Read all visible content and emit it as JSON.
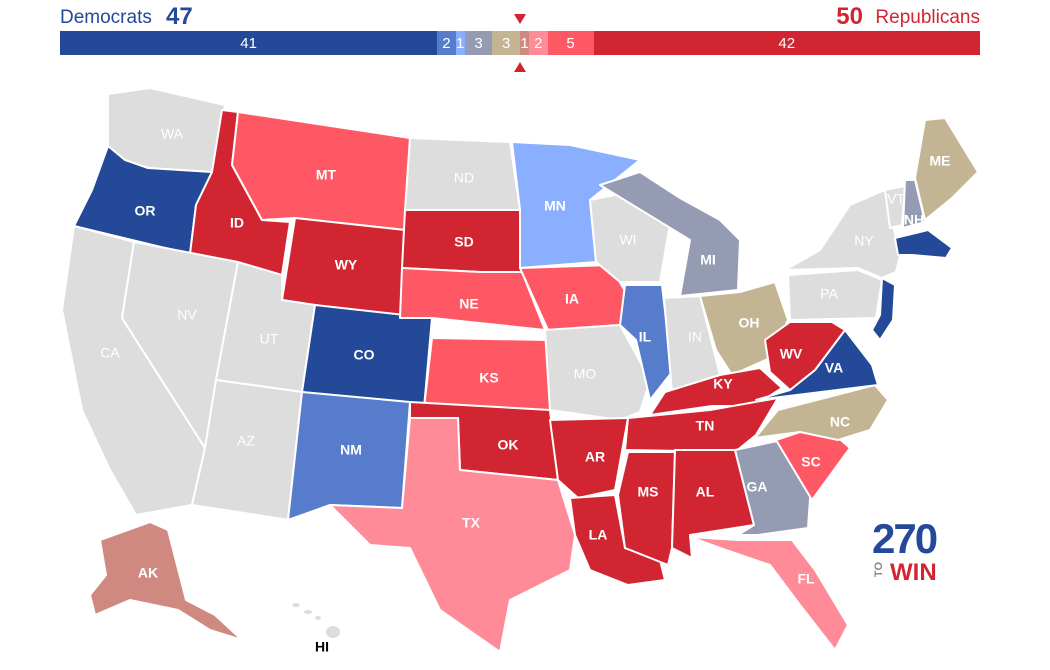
{
  "header": {
    "dem_label": "Democrats",
    "dem_total": "47",
    "rep_total": "50",
    "rep_label": "Republicans"
  },
  "seat_bar": [
    {
      "label": "41",
      "seats": 41,
      "color": "#244999"
    },
    {
      "label": "2",
      "seats": 2,
      "color": "#577CCC"
    },
    {
      "label": "1",
      "seats": 1,
      "color": "#8AAFFF"
    },
    {
      "label": "3",
      "seats": 3,
      "color": "#949BB3"
    },
    {
      "label": "3",
      "seats": 3,
      "color": "#C3B593"
    },
    {
      "label": "1",
      "seats": 1,
      "color": "#CF8980"
    },
    {
      "label": "2",
      "seats": 2,
      "color": "#FF8B98"
    },
    {
      "label": "5",
      "seats": 5,
      "color": "#FF5865"
    },
    {
      "label": "42",
      "seats": 42,
      "color": "#D22532"
    }
  ],
  "colors": {
    "safe_dem": "#244999",
    "likely_dem": "#577CCC",
    "lean_dem": "#8AAFFF",
    "tilt_dem": "#949BB3",
    "tossup": "#C3B593",
    "tilt_rep": "#CF8980",
    "lean_rep": "#FF8B98",
    "likely_rep": "#FF5865",
    "safe_rep": "#D22532",
    "no_race": "#DDDDDD"
  },
  "states": {
    "WA": "WA",
    "OR": "OR",
    "CA": "CA",
    "ID": "ID",
    "NV": "NV",
    "MT": "MT",
    "WY": "WY",
    "UT": "UT",
    "AZ": "AZ",
    "CO": "CO",
    "NM": "NM",
    "ND": "ND",
    "SD": "SD",
    "NE": "NE",
    "KS": "KS",
    "OK": "OK",
    "TX": "TX",
    "MN": "MN",
    "IA": "IA",
    "MO": "MO",
    "AR": "AR",
    "LA": "LA",
    "WI": "WI",
    "IL": "IL",
    "MI": "MI",
    "IN": "IN",
    "OH": "OH",
    "KY": "KY",
    "TN": "TN",
    "MS": "MS",
    "AL": "AL",
    "GA": "GA",
    "FL": "FL",
    "SC": "SC",
    "NC": "NC",
    "VA": "VA",
    "WV": "WV",
    "PA": "PA",
    "NY": "NY",
    "VT": "VT",
    "NH": "NH",
    "ME": "ME",
    "AK": "AK",
    "HI": "HI"
  },
  "logo": {
    "number": "270",
    "to": "TO",
    "win": "WIN"
  }
}
